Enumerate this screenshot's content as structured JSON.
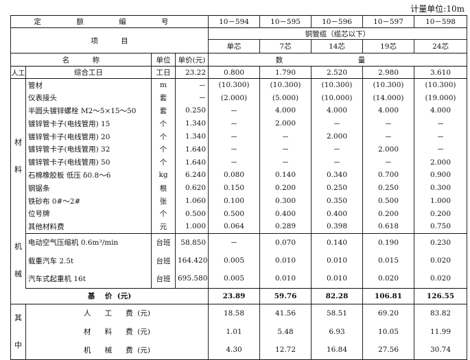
{
  "unit_note": "计量单位:10m",
  "header": {
    "quota_no_label": "定 额 编 号",
    "codes": [
      "10－594",
      "10－595",
      "10－596",
      "10－597",
      "10－598"
    ],
    "item_label": "项          目",
    "group": "铜管缆（缆芯以下）",
    "variants": [
      "单芯",
      "7芯",
      "14芯",
      "19芯",
      "24芯"
    ],
    "name_label": "名          称",
    "unit_label": "单位",
    "price_label": "单价(元)",
    "qty_a": "数",
    "qty_b": "量"
  },
  "labor": {
    "category": "人工",
    "name": "综合工日",
    "unit": "工日",
    "price": "23.22",
    "values": [
      "0.800",
      "1.790",
      "2.520",
      "2.980",
      "3.610"
    ]
  },
  "materials": {
    "category": [
      "材",
      "料"
    ],
    "rows": [
      {
        "name": "管材",
        "unit": "m",
        "price": "－",
        "values": [
          "(10.300)",
          "(10.300)",
          "(10.300)",
          "(10.300)",
          "(10.300)"
        ]
      },
      {
        "name": "仪表接头",
        "unit": "套",
        "price": "－",
        "values": [
          "(2.000)",
          "(5.000)",
          "(10.000)",
          "(14.000)",
          "(19.000)"
        ]
      },
      {
        "name": "半圆头镀锌螺栓 M2～5×15～50",
        "unit": "套",
        "price": "0.250",
        "values": [
          "－",
          "4.000",
          "4.000",
          "4.000",
          "4.000"
        ]
      },
      {
        "name": "镀锌管卡子(电线管用) 15",
        "unit": "个",
        "price": "1.340",
        "values": [
          "－",
          "2.000",
          "－",
          "－",
          "－"
        ]
      },
      {
        "name": "镀锌管卡子(电线管用) 20",
        "unit": "个",
        "price": "1.340",
        "values": [
          "－",
          "－",
          "2.000",
          "－",
          "－"
        ]
      },
      {
        "name": "镀锌管卡子(电线管用) 32",
        "unit": "个",
        "price": "1.640",
        "values": [
          "－",
          "－",
          "－",
          "2.000",
          "－"
        ]
      },
      {
        "name": "镀锌管卡子(电线管用) 50",
        "unit": "个",
        "price": "1.640",
        "values": [
          "－",
          "－",
          "－",
          "－",
          "2.000"
        ]
      },
      {
        "name": "石棉橡胶板 低压 δ0.8～6",
        "unit": "kg",
        "price": "6.240",
        "values": [
          "0.080",
          "0.140",
          "0.340",
          "0.700",
          "0.900"
        ]
      },
      {
        "name": "钢锯条",
        "unit": "根",
        "price": "0.620",
        "values": [
          "0.150",
          "0.200",
          "0.250",
          "0.250",
          "0.300"
        ]
      },
      {
        "name": "铁砂布 0#～2#",
        "unit": "张",
        "price": "1.060",
        "values": [
          "0.100",
          "0.300",
          "0.350",
          "0.500",
          "1.000"
        ]
      },
      {
        "name": "位号牌",
        "unit": "个",
        "price": "0.500",
        "values": [
          "0.500",
          "0.400",
          "0.400",
          "0.200",
          "0.200"
        ]
      },
      {
        "name": "其他材料费",
        "unit": "元",
        "price": "1.000",
        "values": [
          "0.064",
          "0.289",
          "0.398",
          "0.618",
          "0.750"
        ]
      }
    ]
  },
  "machines": {
    "category": [
      "机",
      "械"
    ],
    "rows": [
      {
        "name": "电动空气压缩机 0.6m³/min",
        "unit": "台班",
        "price": "58.850",
        "values": [
          "－",
          "0.070",
          "0.140",
          "0.190",
          "0.230"
        ]
      },
      {
        "name": "载重汽车 2.5t",
        "unit": "台班",
        "price": "164.420",
        "values": [
          "0.005",
          "0.010",
          "0.010",
          "0.015",
          "0.020"
        ]
      },
      {
        "name": "汽车式起重机 16t",
        "unit": "台班",
        "price": "695.580",
        "values": [
          "0.005",
          "0.010",
          "0.010",
          "0.020",
          "0.020"
        ]
      }
    ]
  },
  "base_price": {
    "label": "基    价  (元)",
    "values": [
      "23.89",
      "59.76",
      "82.28",
      "106.81",
      "126.55"
    ]
  },
  "breakdown": {
    "category": [
      "其",
      "中"
    ],
    "rows": [
      {
        "name": "人      工      费  (元)",
        "values": [
          "18.58",
          "41.56",
          "58.51",
          "69.20",
          "83.82"
        ]
      },
      {
        "name": "材      料      费  (元)",
        "values": [
          "1.01",
          "5.48",
          "6.93",
          "10.05",
          "11.99"
        ]
      },
      {
        "name": "机      械      费  (元)",
        "values": [
          "4.30",
          "12.72",
          "16.84",
          "27.56",
          "30.74"
        ]
      }
    ]
  }
}
